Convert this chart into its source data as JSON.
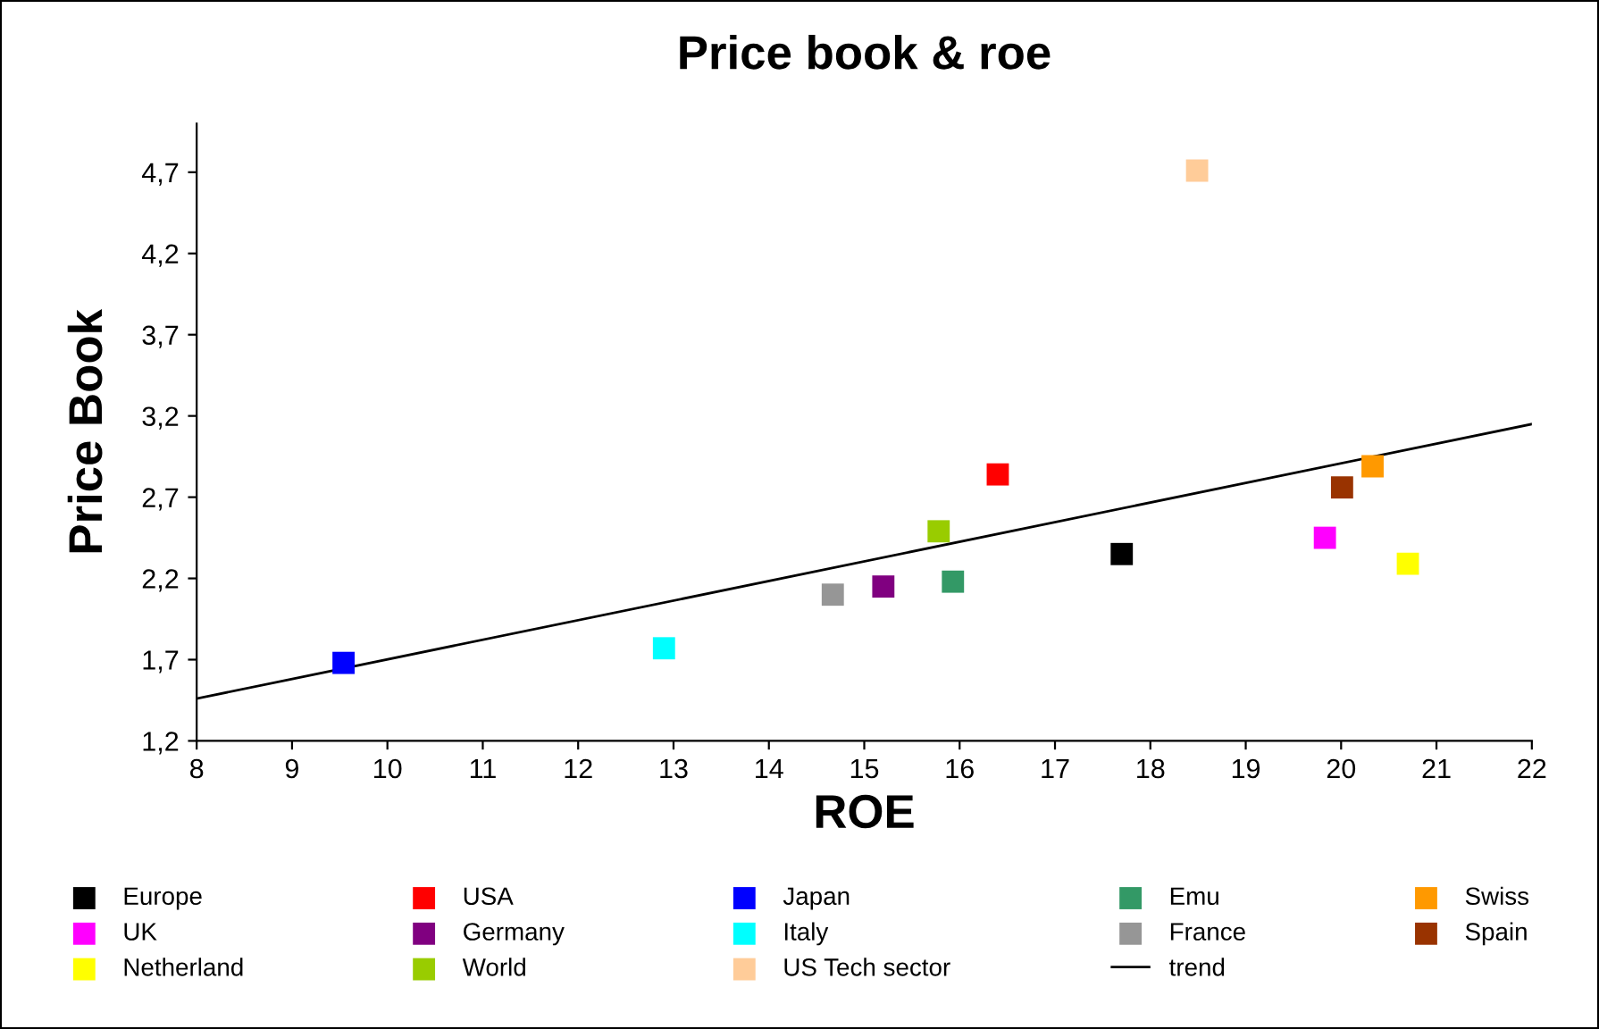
{
  "chart_data": {
    "type": "scatter",
    "title": "Price book & roe",
    "xlabel": "ROE",
    "ylabel": "Price Book",
    "xlim": [
      8,
      22
    ],
    "xticks": [
      8,
      9,
      10,
      11,
      12,
      13,
      14,
      15,
      16,
      17,
      18,
      19,
      20,
      21,
      22
    ],
    "ylim": [
      1.2,
      5.0
    ],
    "yticks": [
      {
        "value": 1.2,
        "label": "1,2"
      },
      {
        "value": 1.7,
        "label": "1,7"
      },
      {
        "value": 2.2,
        "label": "2,2"
      },
      {
        "value": 2.7,
        "label": "2,7"
      },
      {
        "value": 3.2,
        "label": "3,2"
      },
      {
        "value": 3.7,
        "label": "3,7"
      },
      {
        "value": 4.2,
        "label": "4,2"
      },
      {
        "value": 4.7,
        "label": "4,7"
      }
    ],
    "grid": false,
    "legend": "bottom",
    "marker": "square",
    "series": [
      {
        "name": "Europe",
        "color": "#000000",
        "x": [
          17.7
        ],
        "values": [
          2.35
        ]
      },
      {
        "name": "USA",
        "color": "#ff0000",
        "x": [
          16.4
        ],
        "values": [
          2.84
        ]
      },
      {
        "name": "Japan",
        "color": "#0000ff",
        "x": [
          9.54
        ],
        "values": [
          1.68
        ]
      },
      {
        "name": "Emu",
        "color": "#339966",
        "x": [
          15.93
        ],
        "values": [
          2.18
        ]
      },
      {
        "name": "Swiss",
        "color": "#ff9900",
        "x": [
          20.33
        ],
        "values": [
          2.89
        ]
      },
      {
        "name": "UK",
        "color": "#ff00ff",
        "x": [
          19.83
        ],
        "values": [
          2.45
        ]
      },
      {
        "name": "Germany",
        "color": "#800080",
        "x": [
          15.2
        ],
        "values": [
          2.15
        ]
      },
      {
        "name": "Italy",
        "color": "#00ffff",
        "x": [
          12.9
        ],
        "values": [
          1.77
        ]
      },
      {
        "name": "France",
        "color": "#969696",
        "x": [
          14.67
        ],
        "values": [
          2.1
        ]
      },
      {
        "name": "Spain",
        "color": "#993300",
        "x": [
          20.01
        ],
        "values": [
          2.76
        ]
      },
      {
        "name": "Netherland",
        "color": "#ffff00",
        "x": [
          20.7
        ],
        "values": [
          2.29
        ]
      },
      {
        "name": "World",
        "color": "#99cc00",
        "x": [
          15.78
        ],
        "values": [
          2.49
        ]
      },
      {
        "name": "US Tech sector",
        "color": "#ffcc99",
        "x": [
          18.49
        ],
        "values": [
          4.71
        ]
      },
      {
        "name": "trend",
        "type": "line",
        "marker": "none",
        "color": "#000000",
        "x": [
          8,
          22
        ],
        "values": [
          1.46,
          3.15
        ]
      }
    ]
  }
}
